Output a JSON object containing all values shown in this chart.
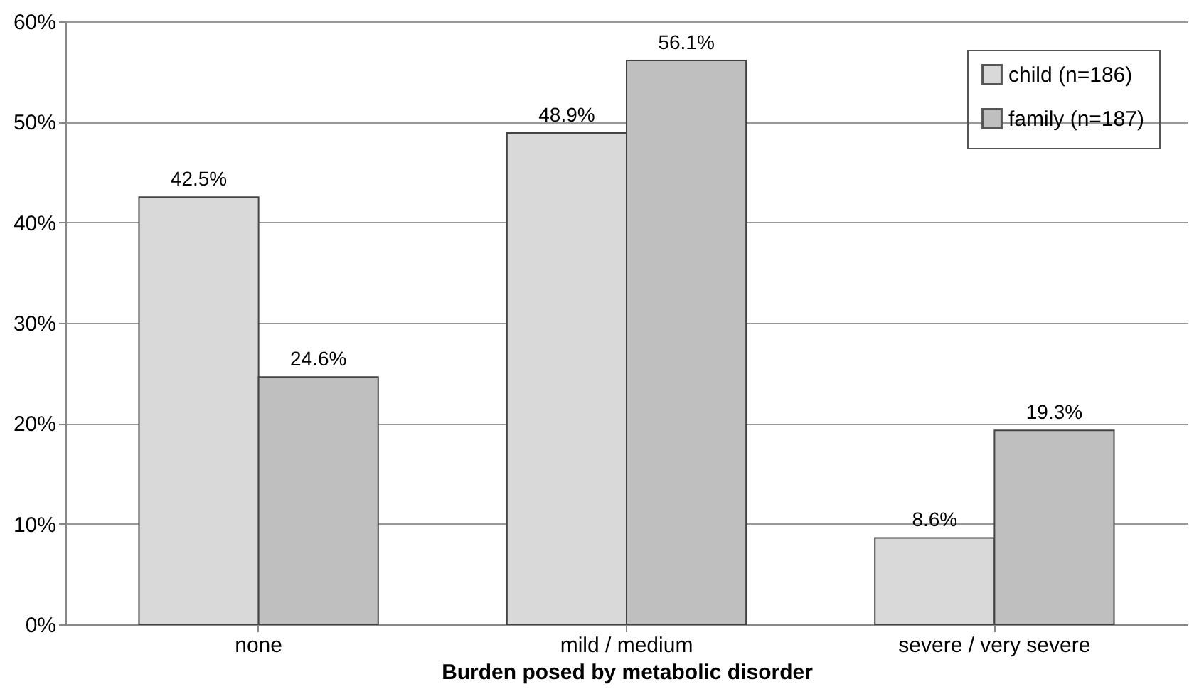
{
  "chart_data": {
    "type": "bar",
    "xlabel": "Burden posed by metabolic disorder",
    "categories": [
      "none",
      "mild / medium",
      "severe / very severe"
    ],
    "series": [
      {
        "name": "child (n=186)",
        "color": "#d9d9d9",
        "values": [
          42.5,
          48.9,
          8.6
        ]
      },
      {
        "name": "family (n=187)",
        "color": "#bfbfbf",
        "values": [
          24.6,
          56.1,
          19.3
        ]
      }
    ],
    "value_labels": [
      [
        "42.5%",
        "48.9%",
        "8.6%"
      ],
      [
        "24.6%",
        "56.1%",
        "19.3%"
      ]
    ],
    "ylim": [
      0,
      60
    ],
    "yticks": [
      {
        "value": 0,
        "label": "0%"
      },
      {
        "value": 10,
        "label": "10%"
      },
      {
        "value": 20,
        "label": "20%"
      },
      {
        "value": 30,
        "label": "30%"
      },
      {
        "value": 40,
        "label": "40%"
      },
      {
        "value": 50,
        "label": "50%"
      },
      {
        "value": 60,
        "label": "60%"
      }
    ],
    "grid": "y",
    "legend": "top right"
  }
}
